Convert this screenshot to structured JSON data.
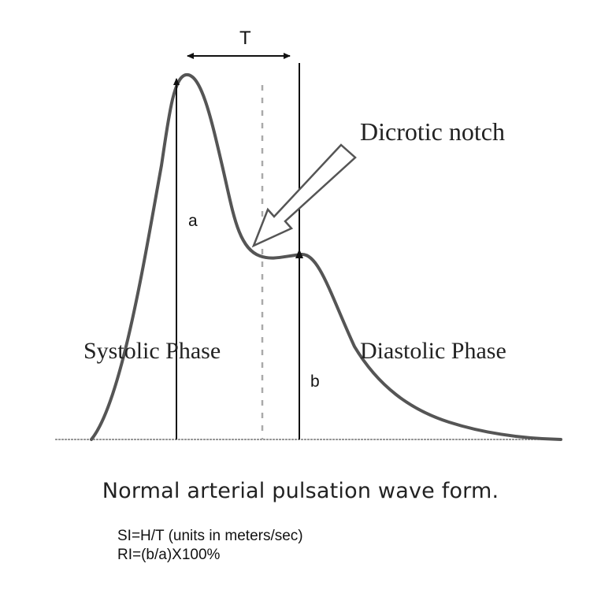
{
  "labels": {
    "period": "T",
    "notch": "Dicrotic notch",
    "peak_height": "a",
    "notch_height": "b",
    "systolic": "Systolic Phase",
    "diastolic": "Diastolic Phase"
  },
  "caption": {
    "title": "Normal arterial pulsation wave form.",
    "formulas": [
      "SI=H/T (units in meters/sec)",
      "RI=(b/a)X100%"
    ]
  },
  "colors": {
    "waveform": "#555555",
    "lines": "#111111",
    "dashed": "#aaaaaa"
  }
}
